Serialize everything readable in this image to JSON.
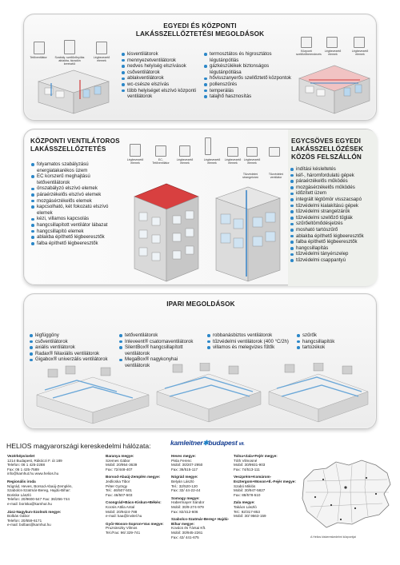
{
  "section1": {
    "title_line1": "EGYEDI ÉS KÖZPONTI",
    "title_line2": "LAKÁSSZELLŐZTETÉSI MEGOLDÁSOK",
    "col1": [
      "kisventilátorok",
      "mennyezetventilátorok",
      "nedves helyiség elszívások",
      "csőventilátorok",
      "ablakventilátorok",
      "wc-csésze elszívás",
      "több helyiséget elszívó központi ventilátorok"
    ],
    "col2": [
      "termosztátos és higrosztátos légutánpótlás",
      "gázkészülékek biztonságos légutánpótlása",
      "hővisszanyerős szellőztető központok",
      "pollenszűrés",
      "temperálás",
      "talajhő hasznosítás"
    ],
    "left_labels": [
      "Tetőventilátor",
      "Szabály. szellőzőnyílás ablakba, távadón keresztül",
      "Légbevezető elemek"
    ],
    "right_labels": [
      "Központi szellőzőberendezés",
      "Légbevezető elemek",
      "Légbevezető elemek"
    ]
  },
  "section2": {
    "left_title_line1": "KÖZPONTI VENTILÁTOROS",
    "left_title_line2": "LAKÁSSZELLŐZTETÉS",
    "left_list": [
      "folyamatos szabályzású energiatakarékos üzem",
      "EC korszerű meghajtású tetőventilátorok",
      "önszabályzó elszívó elemek",
      "páraérzékelős elszívó elemek",
      "mozgásérzékelős elemek",
      "kapcsolható, két fokozatú elszívó elemek",
      "kézi, villamos kapcsolás",
      "hangcsillapított ventilátor lábazat",
      "hangcsillapító elemek",
      "ablakba építhető légbeeresztők",
      "falba építhető légbeeresztők"
    ],
    "right_title_line1": "EGYCSÖVES EGYEDI",
    "right_title_line2": "LAKÁSSZELLŐZÉSEK",
    "right_title_line3": "KÖZÖS FELSZÁLLÓN",
    "right_list": [
      "indítási késleltetés",
      "kéf-, háromfordulatú gépek",
      "páraérzékelős működés",
      "mozgásérzékelős működés",
      "időzített üzem",
      "integrált légtömör visszacsapó",
      "tűzvédelmi kialakítású gépek",
      "tűzvédelmi strangelzárók",
      "tűzvédelmi szellőző tűglák",
      "szűrőeltömődésjelzés",
      "mosható tartószűrő",
      "ablakba építhető légbeeresztők",
      "falba építhető légbeeresztők",
      "hangcsillapítás",
      "tűzvédelmi tányérszelep",
      "tűzvédelmi csappantyú"
    ],
    "diagram_labels": [
      "Légbevezető elemek",
      "EC-Tetőventilátor",
      "Légbevezető elemek",
      "Légbevezető elemek",
      "Légbevezető elemek",
      "Légbevezető elemek",
      "Tűzvédelmi strangelzáró",
      "Tűzvédelmi ventilátor"
    ]
  },
  "section3": {
    "title": "IPARI MEGOLDÁSOK",
    "col1": [
      "légfüggöny",
      "csőventilátorok",
      "axiális ventilátorok",
      "Radax® félaxiális ventilátorok",
      "Gigabox® univerzális ventilátorok"
    ],
    "col2": [
      "tetőventilátorok",
      "Inleveent® csatornaventilátorok",
      "SilentBox® hangcsillapított ventilátorok",
      "MegaBox® nagykonyhai ventilátorok"
    ],
    "col3": [
      "robbanásbiztos ventilátorok",
      "tűzvédelmi ventilátorok (400 °C/2h)",
      "villamos és melegvizes fűtők"
    ],
    "col4": [
      "szűrők",
      "hangcsillapítók",
      "tartozékok"
    ]
  },
  "footer": {
    "heading": "HELIOS magyarországi kereskedelmi hálózata:",
    "logo_kamleitner": "kamleitner",
    "logo_budapest": "budapest",
    "logo_suffix": "kft.",
    "map_caption": "A Helios kiskereskedelmi központjai",
    "col1": [
      {
        "h": "Vezérképviselet",
        "lines": [
          "1214 Budapest, Rákóczi F. út 189",
          "Telefon: 06 1 425-2288",
          "Fax: 06 1 425-7589",
          "info@kamhut.hu   www.helios.hu"
        ]
      },
      {
        "h": "Regionális iroda",
        "lines": [
          "Nógrád, Heves, Borsod-Abaúj-Zemplén,",
          "Szabolcs-Szatmár-Bereg, Hajdú-Bihar:",
          "Boriske László",
          "Telefon: 20/9600-547 Fax: 36/256-744",
          "e-mail: boriska@kamhut.hu"
        ]
      },
      {
        "h": "Jász-Nagykun-Szolnok megye:",
        "lines": [
          "Bolbás Gábor",
          "Telefon: 20/559-6171",
          "e-mail: bolbas@kamhut.hu"
        ]
      }
    ],
    "col2": [
      {
        "h": "Baranya megye:",
        "lines": [
          "Szemes Gábor",
          "Mobil: 20/954-3639",
          "Fax: 72/448-407"
        ]
      },
      {
        "h": "Borsod-Abaúj-Zemplén megye:",
        "lines": [
          "Jedlicska Tibor",
          "Péter György",
          "Tel.: 46/507-501",
          "Fax: 46/507-503"
        ]
      },
      {
        "h": "Csongrád+Bács-Kiskun+Békés:",
        "lines": [
          "Kocsis Attila Antal",
          "Mobil: 20/9424-788",
          "e-mail: kaa@invitel.hu"
        ]
      },
      {
        "h": "Győr-Moson-Sopron+Vas megye:",
        "lines": [
          "Pruzsinszky Vilmos",
          "Tel./Fax: 96/ 329-741"
        ]
      }
    ],
    "col3": [
      {
        "h": "Heves megye:",
        "lines": [
          "Pisla Ferenc",
          "Mobil: 30/207-2950",
          "Fax: 36/515-117"
        ]
      },
      {
        "h": "Nógrád megye:",
        "lines": [
          "Belyán László",
          "Tel.: 32/520-120",
          "Fax: 32/ 44-22-44"
        ]
      },
      {
        "h": "Somogy megye:",
        "lines": [
          "Habermayer Sándor",
          "Mobil: 30/9-274-979",
          "Fax: 82/412-606"
        ]
      },
      {
        "h": "Szabolcs-Szatmár-Bereg+ Hajdú-Bihar megye:",
        "lines": [
          "Kovács és Társai Kft.",
          "Mobil: 30/945-2261",
          "Fax: 42/ 441-675"
        ]
      }
    ],
    "col4": [
      {
        "h": "Tolna+Zala+Fejér megye:",
        "lines": [
          "Tóth Vilmosné",
          "Mobil: 30/9931-903",
          "Fax: 74/513-111"
        ]
      },
      {
        "h": "Veszprém+Komárom-Esztergom+Moson+É.-Fejér megye:",
        "lines": [
          "Szabó Miklós",
          "Mobil: 30/947-5827",
          "Fax: 88/578-510"
        ]
      },
      {
        "h": "Zala megye:",
        "lines": [
          "Takács László",
          "Tel.: 92/317-853",
          "Mobil: 30/ 9563-159"
        ]
      }
    ]
  }
}
